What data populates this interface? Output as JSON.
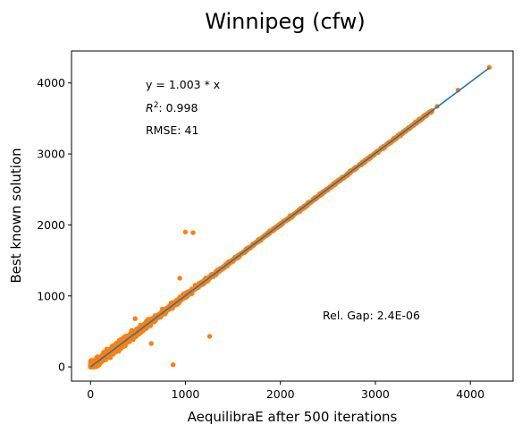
{
  "chart_data": {
    "type": "scatter",
    "title": "Winnipeg (cfw)",
    "xlabel": "AequilibraE after 500 iterations",
    "ylabel": "Best known solution",
    "xlim": [
      -200,
      4450
    ],
    "ylim": [
      -200,
      4450
    ],
    "xticks": [
      0,
      1000,
      2000,
      3000,
      4000
    ],
    "yticks": [
      0,
      1000,
      2000,
      3000,
      4000
    ],
    "grid": false,
    "fit_line": {
      "slope": 1.003,
      "x_range": [
        0,
        4200
      ],
      "color": "#1f77b4"
    },
    "point_color": "#ff7f0e",
    "annotations": {
      "equation": "y = 1.003 * x",
      "r2_value": ":  0.998",
      "rmse": "RMSE: 41",
      "rel_gap": "Rel. Gap: 2.4E-06"
    },
    "outliers": [
      {
        "x": 1000,
        "y": 1900
      },
      {
        "x": 1080,
        "y": 1890
      },
      {
        "x": 1255,
        "y": 430
      },
      {
        "x": 870,
        "y": 30
      },
      {
        "x": 640,
        "y": 330
      },
      {
        "x": 470,
        "y": 680
      },
      {
        "x": 940,
        "y": 1250
      }
    ],
    "sampled_points": [
      {
        "x": 0,
        "y": 0
      },
      {
        "x": 30,
        "y": 20
      },
      {
        "x": 60,
        "y": 90
      },
      {
        "x": 90,
        "y": 40
      },
      {
        "x": 120,
        "y": 150
      },
      {
        "x": 160,
        "y": 100
      },
      {
        "x": 200,
        "y": 230
      },
      {
        "x": 240,
        "y": 180
      },
      {
        "x": 280,
        "y": 300
      },
      {
        "x": 320,
        "y": 260
      },
      {
        "x": 380,
        "y": 400
      },
      {
        "x": 440,
        "y": 420
      },
      {
        "x": 500,
        "y": 520
      },
      {
        "x": 560,
        "y": 540
      },
      {
        "x": 620,
        "y": 640
      },
      {
        "x": 700,
        "y": 700
      },
      {
        "x": 780,
        "y": 800
      },
      {
        "x": 860,
        "y": 860
      },
      {
        "x": 950,
        "y": 960
      },
      {
        "x": 1050,
        "y": 1040
      },
      {
        "x": 1150,
        "y": 1170
      },
      {
        "x": 1250,
        "y": 1240
      },
      {
        "x": 1350,
        "y": 1360
      },
      {
        "x": 1450,
        "y": 1460
      },
      {
        "x": 1550,
        "y": 1550
      },
      {
        "x": 1650,
        "y": 1670
      },
      {
        "x": 1750,
        "y": 1760
      },
      {
        "x": 1850,
        "y": 1850
      },
      {
        "x": 1950,
        "y": 1960
      },
      {
        "x": 2050,
        "y": 2060
      },
      {
        "x": 2150,
        "y": 2150
      },
      {
        "x": 2250,
        "y": 2260
      },
      {
        "x": 2350,
        "y": 2360
      },
      {
        "x": 2450,
        "y": 2450
      },
      {
        "x": 2550,
        "y": 2560
      },
      {
        "x": 2650,
        "y": 2660
      },
      {
        "x": 2750,
        "y": 2760
      },
      {
        "x": 2850,
        "y": 2860
      },
      {
        "x": 2950,
        "y": 2970
      },
      {
        "x": 3050,
        "y": 3060
      },
      {
        "x": 3150,
        "y": 3160
      },
      {
        "x": 3250,
        "y": 3260
      },
      {
        "x": 3350,
        "y": 3360
      },
      {
        "x": 3450,
        "y": 3470
      },
      {
        "x": 3530,
        "y": 3550
      },
      {
        "x": 3650,
        "y": 3670
      },
      {
        "x": 3870,
        "y": 3900
      },
      {
        "x": 4200,
        "y": 4220
      }
    ]
  }
}
